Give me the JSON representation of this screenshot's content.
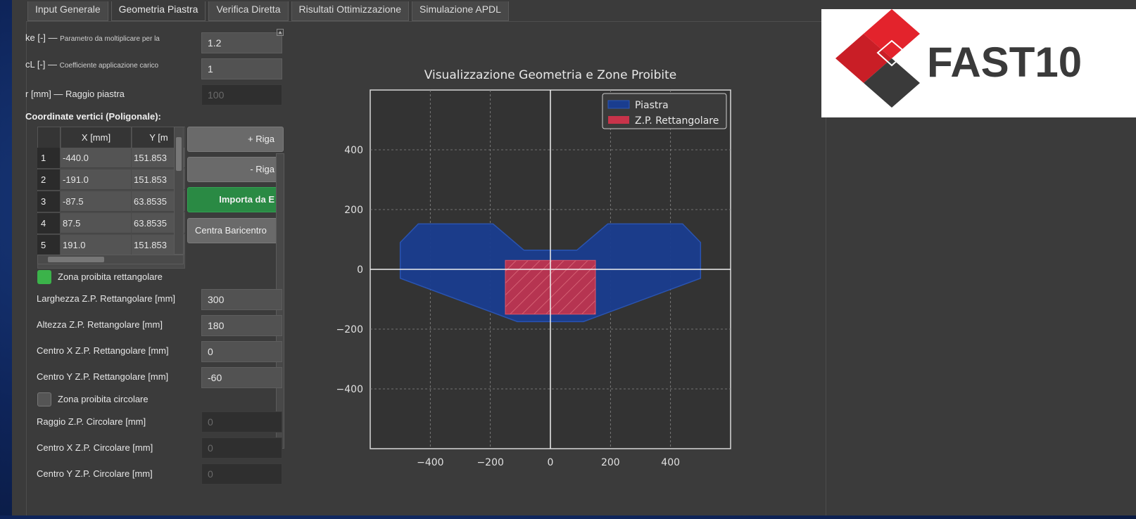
{
  "tabs": [
    {
      "label": "Input Generale"
    },
    {
      "label": "Geometria Piastra"
    },
    {
      "label": "Verifica Diretta"
    },
    {
      "label": "Risultati Ottimizzazione"
    },
    {
      "label": "Simulazione APDL"
    }
  ],
  "params": {
    "ke": {
      "label": "ke [-] —",
      "hint": "Parametro da moltiplicare per la",
      "value": "1.2"
    },
    "cl": {
      "label": "cL [-] —",
      "hint": "Coefficiente applicazione carico",
      "value": "1"
    },
    "r": {
      "label": "r [mm] — Raggio piastra",
      "value": "100"
    }
  },
  "table": {
    "title": "Coordinate vertici (Poligonale):",
    "col_x": "X [mm]",
    "col_y": "Y [m",
    "rows": [
      {
        "n": "1",
        "x": "-440.0",
        "y": "151.853"
      },
      {
        "n": "2",
        "x": "-191.0",
        "y": "151.853"
      },
      {
        "n": "3",
        "x": "-87.5",
        "y": "63.8535"
      },
      {
        "n": "4",
        "x": "87.5",
        "y": "63.8535"
      },
      {
        "n": "5",
        "x": "191.0",
        "y": "151.853"
      }
    ]
  },
  "buttons": {
    "add_row": "+ Riga",
    "remove_row": "- Riga",
    "import": "Importa da E",
    "center": "Centra Baricentro"
  },
  "rect_zone": {
    "checkbox_label": "Zona proibita rettangolare",
    "checked": true,
    "width_label": "Larghezza Z.P. Rettangolare [mm]",
    "width_value": "300",
    "height_label": "Altezza Z.P. Rettangolare [mm]",
    "height_value": "180",
    "cx_label": "Centro X Z.P. Rettangolare [mm]",
    "cx_value": "0",
    "cy_label": "Centro Y Z.P. Rettangolare [mm]",
    "cy_value": "-60"
  },
  "circ_zone": {
    "checkbox_label": "Zona proibita circolare",
    "checked": false,
    "radius_label": "Raggio Z.P. Circolare [mm]",
    "radius_value": "0",
    "cx_label": "Centro X Z.P. Circolare [mm]",
    "cx_value": "0",
    "cy_label": "Centro Y Z.P. Circolare [mm]",
    "cy_value": "0"
  },
  "logo": {
    "text": "FAST10"
  },
  "colors": {
    "plate": "#1a3d8f",
    "zone": "#c8334a",
    "chart_bg": "#333333",
    "green_button": "#2a8a44"
  },
  "chart_data": {
    "type": "area",
    "title": "Visualizzazione Geometria e Zone Proibite",
    "xlabel": "",
    "ylabel": "",
    "xlim": [
      -600,
      600
    ],
    "ylim": [
      -600,
      600
    ],
    "xticks": [
      -400,
      -200,
      0,
      200,
      400
    ],
    "yticks": [
      -400,
      -200,
      0,
      200,
      400
    ],
    "grid": true,
    "legend_position": "top-right",
    "series": [
      {
        "name": "Piastra",
        "color": "#1a3d8f",
        "points": [
          [
            -440,
            152
          ],
          [
            -191,
            152
          ],
          [
            -88,
            64
          ],
          [
            88,
            64
          ],
          [
            191,
            152
          ],
          [
            440,
            152
          ],
          [
            500,
            90
          ],
          [
            500,
            -30
          ],
          [
            110,
            -175
          ],
          [
            -110,
            -175
          ],
          [
            -500,
            -30
          ],
          [
            -500,
            90
          ]
        ]
      },
      {
        "name": "Z.P. Rettangolare",
        "color": "#c8334a",
        "rect": {
          "cx": 0,
          "cy": -60,
          "width": 300,
          "height": 180
        }
      }
    ]
  }
}
